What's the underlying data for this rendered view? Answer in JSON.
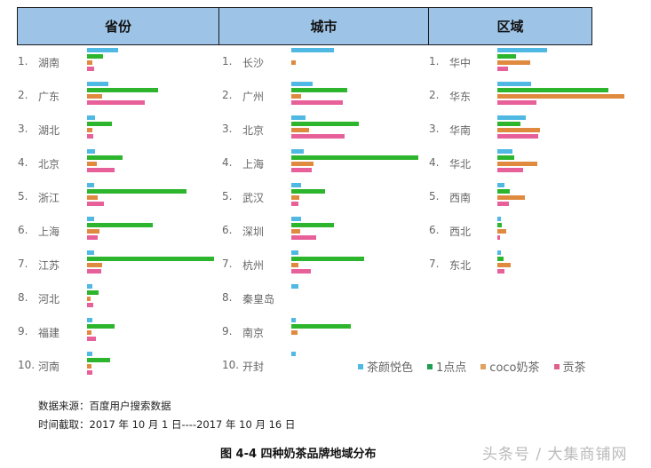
{
  "headers": [
    "省份",
    "城市",
    "区域"
  ],
  "legend": [
    {
      "label": "茶颜悦色",
      "color": "#4fb8e3"
    },
    {
      "label": "1点点",
      "color": "#2db52d"
    },
    {
      "label": "coco奶茶",
      "color": "#e08a3f"
    },
    {
      "label": "贡茶",
      "color": "#e8609a"
    }
  ],
  "notes": {
    "source": "数据来源：百度用户搜索数据",
    "period": "时间截取：2017 年 10 月 1 日----2017 年 10 月 16 日"
  },
  "caption": "图 4-4  四种奶茶品牌地域分布",
  "watermark": "头条号 / 大集商铺网",
  "chart_data": [
    {
      "type": "bar",
      "title": "省份",
      "orientation": "horizontal",
      "categories": [
        "湖南",
        "广东",
        "湖北",
        "北京",
        "浙江",
        "上海",
        "江苏",
        "河北",
        "福建",
        "河南"
      ],
      "series": [
        {
          "name": "茶颜悦色",
          "values": [
            35,
            24,
            9,
            9,
            8,
            8,
            8,
            6,
            6,
            6
          ]
        },
        {
          "name": "1点点",
          "values": [
            18,
            80,
            28,
            40,
            112,
            74,
            143,
            13,
            31,
            26
          ]
        },
        {
          "name": "coco奶茶",
          "values": [
            6,
            17,
            6,
            11,
            12,
            14,
            17,
            4,
            5,
            5
          ]
        },
        {
          "name": "贡茶",
          "values": [
            8,
            65,
            7,
            31,
            19,
            12,
            16,
            7,
            10,
            6
          ]
        }
      ],
      "xlabel": "",
      "ylabel": "",
      "grid": false,
      "legend_position": "bottom-right"
    },
    {
      "type": "bar",
      "title": "城市",
      "orientation": "horizontal",
      "categories": [
        "长沙",
        "广州",
        "北京",
        "上海",
        "武汉",
        "深圳",
        "杭州",
        "秦皇岛",
        "南京",
        "开封"
      ],
      "series": [
        {
          "name": "茶颜悦色",
          "values": [
            48,
            24,
            16,
            14,
            11,
            11,
            8,
            8,
            5,
            5
          ]
        },
        {
          "name": "1点点",
          "values": [
            0,
            63,
            76,
            143,
            38,
            48,
            82,
            0,
            67,
            0
          ]
        },
        {
          "name": "coco奶茶",
          "values": [
            5,
            11,
            20,
            25,
            9,
            10,
            8,
            0,
            7,
            0
          ]
        },
        {
          "name": "贡茶",
          "values": [
            0,
            58,
            60,
            23,
            8,
            28,
            22,
            0,
            0,
            0
          ]
        }
      ],
      "xlabel": "",
      "ylabel": "",
      "grid": false
    },
    {
      "type": "bar",
      "title": "区域",
      "orientation": "horizontal",
      "categories": [
        "华中",
        "华东",
        "华南",
        "华北",
        "西南",
        "西北",
        "东北"
      ],
      "series": [
        {
          "name": "茶颜悦色",
          "values": [
            56,
            38,
            32,
            17,
            8,
            4,
            4
          ]
        },
        {
          "name": "1点点",
          "values": [
            21,
            125,
            26,
            19,
            14,
            5,
            7
          ]
        },
        {
          "name": "coco奶茶",
          "values": [
            37,
            143,
            48,
            45,
            31,
            10,
            15
          ]
        },
        {
          "name": "贡茶",
          "values": [
            12,
            44,
            46,
            29,
            13,
            3,
            8
          ]
        }
      ],
      "xlabel": "",
      "ylabel": "",
      "grid": false
    }
  ]
}
